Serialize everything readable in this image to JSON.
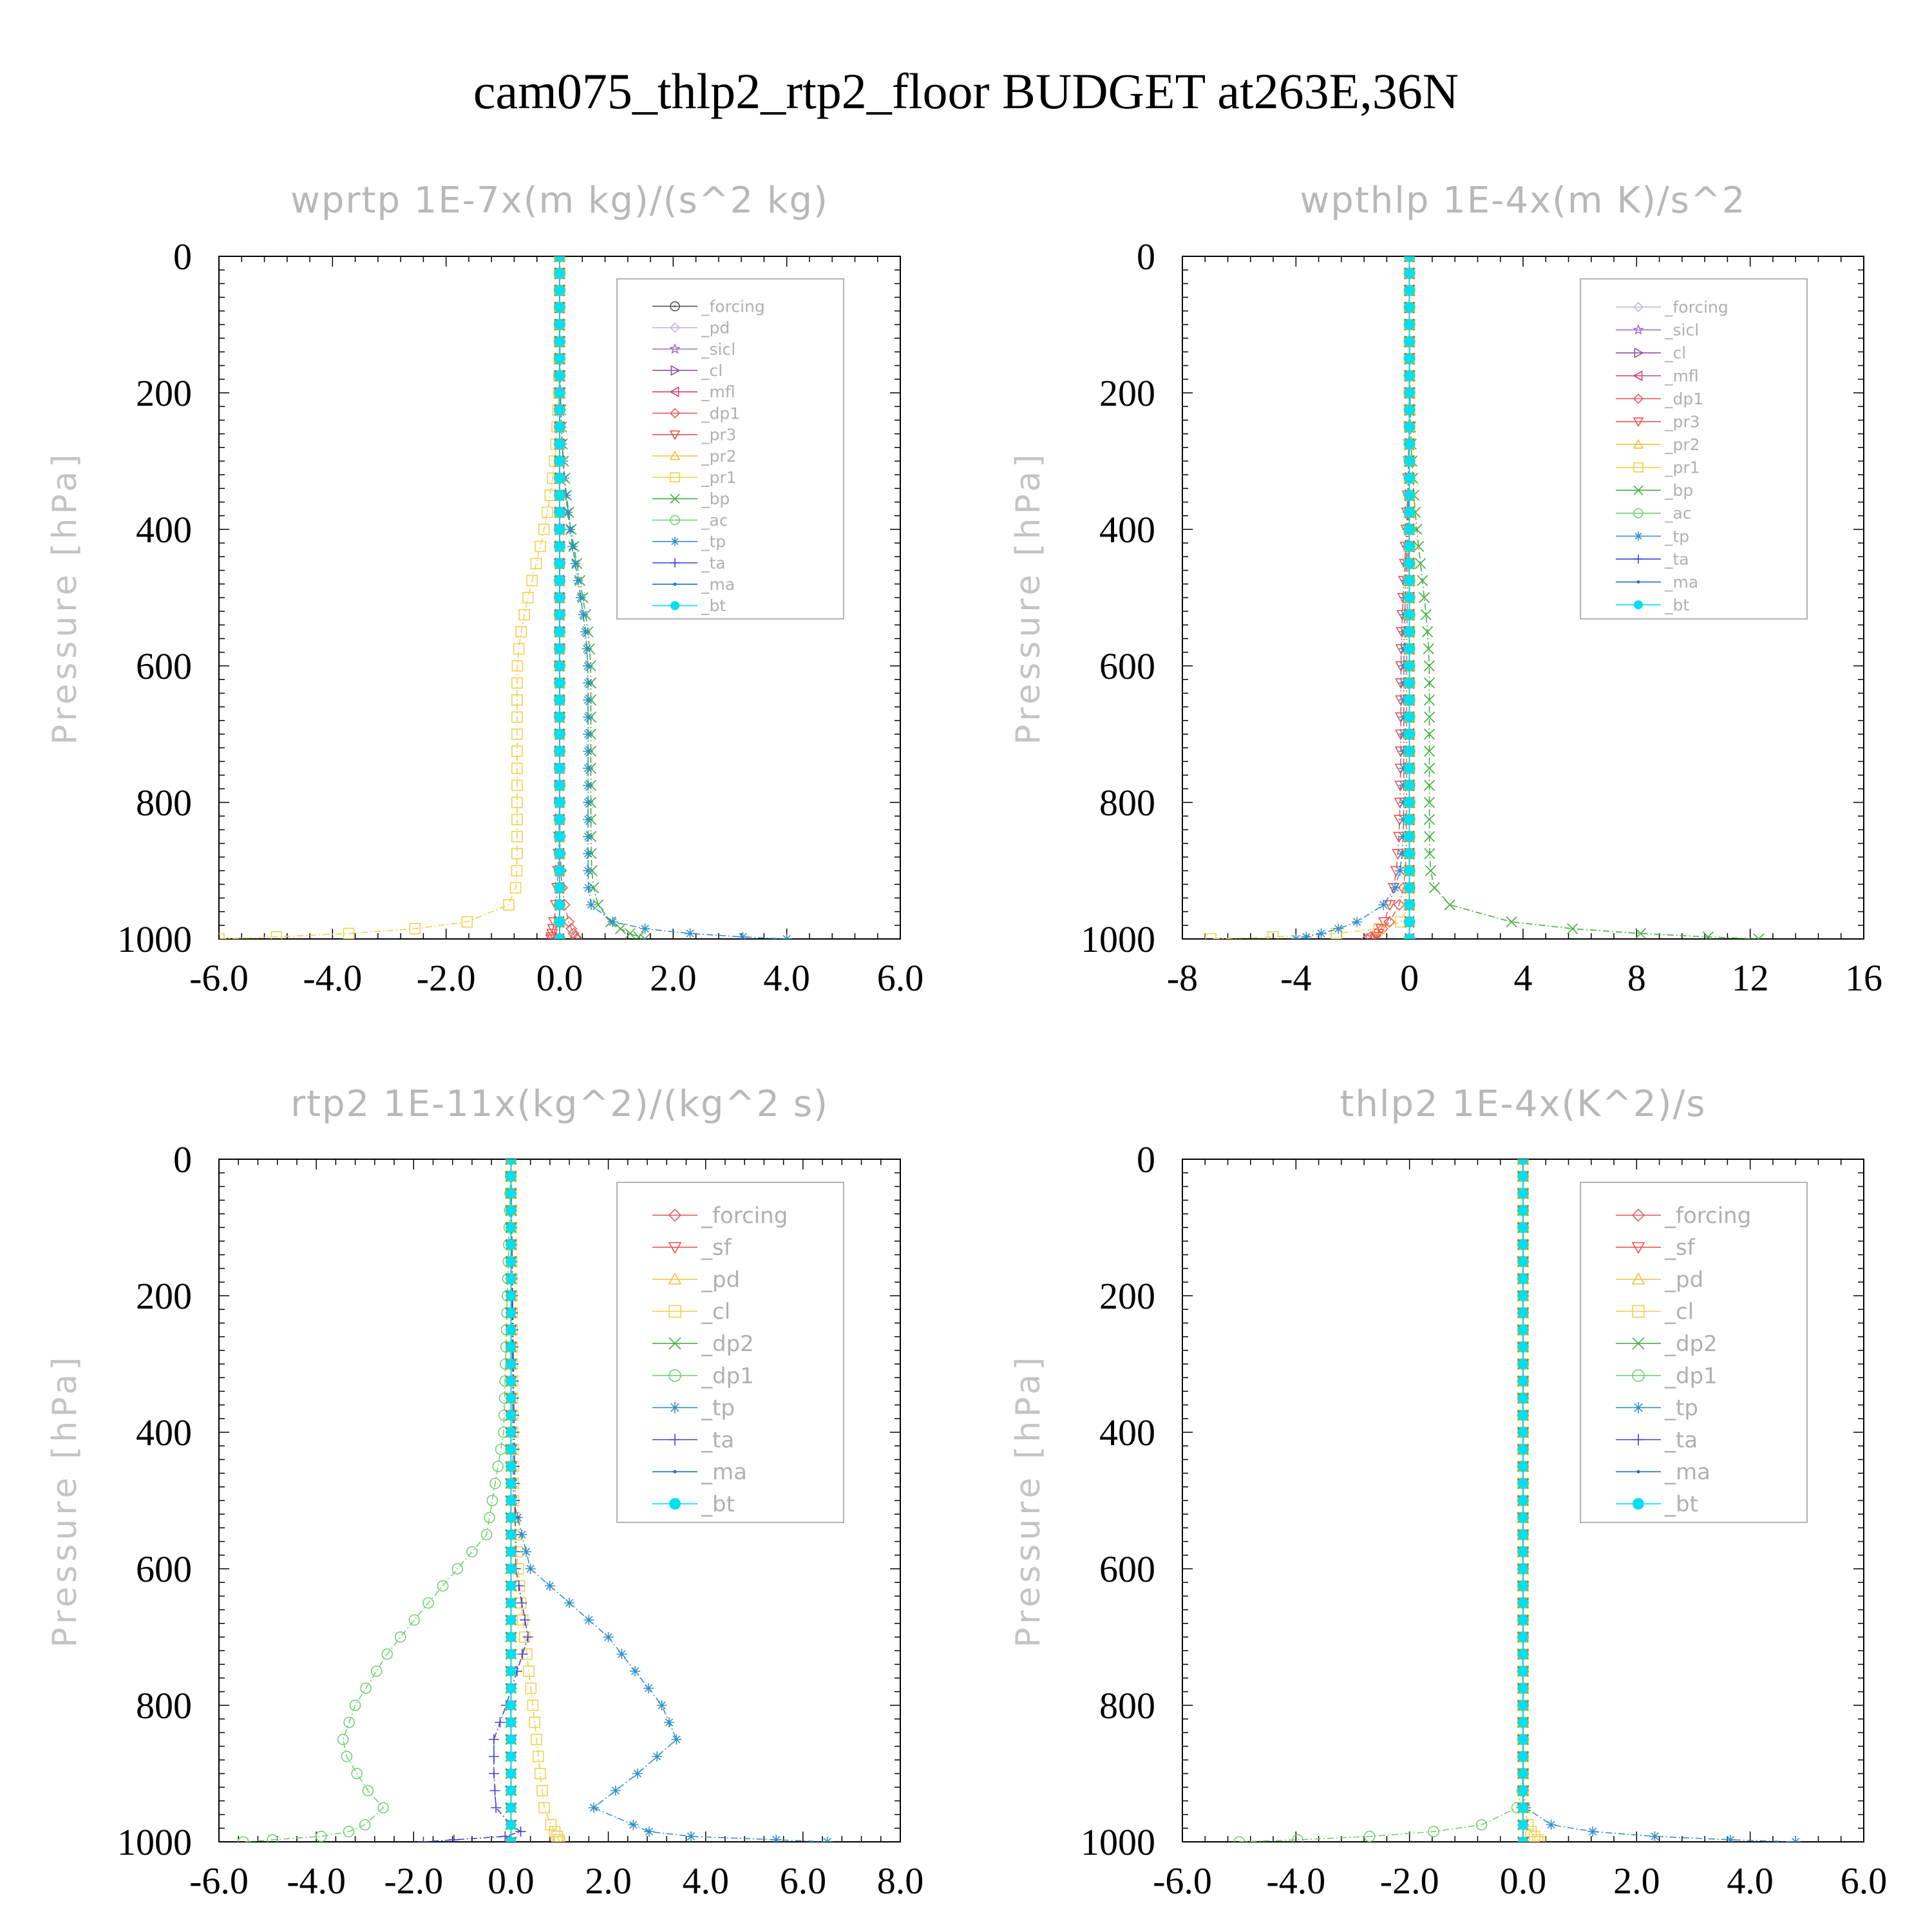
{
  "figure": {
    "title": "cam075_thlp2_rtp2_floor  BUDGET at263E,36N"
  },
  "chart_data": [
    {
      "type": "line",
      "title": "wprtp  1E-7x(m kg)/(s^2 kg)",
      "xlabel": "",
      "ylabel": "Pressure [hPa]",
      "xlim": [
        -6.0,
        6.0
      ],
      "ylim": [
        1000,
        0
      ],
      "xticks": [
        "-6.0",
        "-4.0",
        "-2.0",
        "0.0",
        "2.0",
        "4.0",
        "6.0"
      ],
      "xtick_values": [
        -6,
        -4,
        -2,
        0,
        2,
        4,
        6
      ],
      "yticks": [
        "0",
        "200",
        "400",
        "600",
        "800",
        "1000"
      ],
      "ytick_values": [
        0,
        200,
        400,
        600,
        800,
        1000
      ],
      "legend_position": "top-right",
      "legend_font": 25,
      "series": [
        {
          "name": "_forcing",
          "color": "#555555",
          "marker": "circle-dot",
          "profile": "zero"
        },
        {
          "name": "_pd",
          "color": "#c9b3e8",
          "marker": "diamond",
          "profile": "zero"
        },
        {
          "name": "_sicl",
          "color": "#a070c8",
          "marker": "star",
          "profile": "zero"
        },
        {
          "name": "_cl",
          "color": "#9050a0",
          "marker": "tri-right",
          "profile": "zero"
        },
        {
          "name": "_mfl",
          "color": "#d04070",
          "marker": "tri-left",
          "profile": "zero"
        },
        {
          "name": "_dp1",
          "color": "#e06060",
          "marker": "diamond",
          "profile": "decay",
          "surface": 0.3,
          "scale": 40,
          "shift": 0
        },
        {
          "name": "_pr3",
          "color": "#f05050",
          "marker": "tri-down",
          "profile": "decay",
          "surface": -0.15,
          "scale": 60,
          "shift": 0
        },
        {
          "name": "_pr2",
          "color": "#f0c040",
          "marker": "tri-up",
          "profile": "zero"
        },
        {
          "name": "_pr1",
          "color": "#f2d050",
          "marker": "square",
          "profile": "decay",
          "surface": -6.0,
          "scale": 14,
          "shift": -0.75
        },
        {
          "name": "_bp",
          "color": "#40b040",
          "marker": "x",
          "profile": "decay",
          "surface": 1.5,
          "scale": 25,
          "shift": 0.55
        },
        {
          "name": "_ac",
          "color": "#70d070",
          "marker": "circle",
          "profile": "zero"
        },
        {
          "name": "_tp",
          "color": "#3090c8",
          "marker": "asterisk",
          "profile": "decay",
          "surface": 4.0,
          "scale": 12,
          "shift": 0.5
        },
        {
          "name": "_ta",
          "color": "#4040d0",
          "marker": "plus",
          "profile": "zero"
        },
        {
          "name": "_ma",
          "color": "#2070c0",
          "marker": "dot",
          "profile": "zero"
        },
        {
          "name": "_bt",
          "color": "#00e0f0",
          "marker": "filled-circle",
          "profile": "zero"
        }
      ]
    },
    {
      "type": "line",
      "title": "wpthlp  1E-4x(m K)/s^2",
      "xlabel": "",
      "ylabel": "Pressure [hPa]",
      "xlim": [
        -8,
        16
      ],
      "ylim": [
        1000,
        0
      ],
      "xticks": [
        "-8",
        "-4",
        "0",
        "4",
        "8",
        "12",
        "16"
      ],
      "xtick_values": [
        -8,
        -4,
        0,
        4,
        8,
        12,
        16
      ],
      "yticks": [
        "0",
        "200",
        "400",
        "600",
        "800",
        "1000"
      ],
      "ytick_values": [
        0,
        200,
        400,
        600,
        800,
        1000
      ],
      "legend_position": "top-right",
      "legend_font": 25,
      "series": [
        {
          "name": "_forcing",
          "color": "#c9b3e8",
          "marker": "diamond",
          "profile": "zero"
        },
        {
          "name": "_sicl",
          "color": "#a070c8",
          "marker": "star",
          "profile": "zero"
        },
        {
          "name": "_cl",
          "color": "#9050a0",
          "marker": "tri-right",
          "profile": "zero"
        },
        {
          "name": "_mfl",
          "color": "#d04070",
          "marker": "tri-left",
          "profile": "zero"
        },
        {
          "name": "_dp1",
          "color": "#e06060",
          "marker": "diamond",
          "profile": "decay",
          "surface": -1.5,
          "scale": 30,
          "shift": -0.1
        },
        {
          "name": "_pr3",
          "color": "#f05050",
          "marker": "tri-down",
          "profile": "decay",
          "surface": -1.2,
          "scale": 60,
          "shift": -0.3
        },
        {
          "name": "_pr2",
          "color": "#f0c040",
          "marker": "tri-up",
          "profile": "zero"
        },
        {
          "name": "_pr1",
          "color": "#f2d050",
          "marker": "square",
          "profile": "decay",
          "surface": -7.0,
          "scale": 8,
          "shift": 0
        },
        {
          "name": "_bp",
          "color": "#40b040",
          "marker": "x",
          "profile": "decay",
          "surface": 12.3,
          "scale": 18,
          "shift": 0.7
        },
        {
          "name": "_ac",
          "color": "#70d070",
          "marker": "circle",
          "profile": "zero"
        },
        {
          "name": "_tp",
          "color": "#3090c8",
          "marker": "asterisk",
          "profile": "decay",
          "surface": -4.0,
          "scale": 30,
          "shift": -0.2
        },
        {
          "name": "_ta",
          "color": "#4040d0",
          "marker": "plus",
          "profile": "zero"
        },
        {
          "name": "_ma",
          "color": "#2070c0",
          "marker": "dot",
          "profile": "zero"
        },
        {
          "name": "_bt",
          "color": "#00e0f0",
          "marker": "filled-circle",
          "profile": "zero"
        }
      ]
    },
    {
      "type": "line",
      "title": "rtp2  1E-11x(kg^2)/(kg^2 s)",
      "xlabel": "",
      "ylabel": "Pressure [hPa]",
      "xlim": [
        -6.0,
        8.0
      ],
      "ylim": [
        1000,
        0
      ],
      "xticks": [
        "-6.0",
        "-4.0",
        "-2.0",
        "0.0",
        "2.0",
        "4.0",
        "6.0",
        "8.0"
      ],
      "xtick_values": [
        -6,
        -4,
        -2,
        0,
        2,
        4,
        6,
        8
      ],
      "yticks": [
        "0",
        "200",
        "400",
        "600",
        "800",
        "1000"
      ],
      "ytick_values": [
        0,
        200,
        400,
        600,
        800,
        1000
      ],
      "legend_position": "top-right",
      "legend_font": 34,
      "series": [
        {
          "name": "_forcing",
          "color": "#e06060",
          "marker": "diamond",
          "profile": "zero"
        },
        {
          "name": "_sf",
          "color": "#f05050",
          "marker": "tri-down",
          "profile": "zero"
        },
        {
          "name": "_pd",
          "color": "#f0c040",
          "marker": "tri-up",
          "profile": "zero"
        },
        {
          "name": "_cl",
          "color": "#f2d050",
          "marker": "square",
          "profile": "points",
          "p": [
            0,
            500,
            650,
            800,
            900,
            960,
            985,
            1000
          ],
          "v": [
            0,
            0.05,
            0.2,
            0.45,
            0.6,
            0.7,
            0.9,
            1.0
          ]
        },
        {
          "name": "_dp2",
          "color": "#40b040",
          "marker": "x",
          "profile": "zero"
        },
        {
          "name": "_dp1",
          "color": "#70d070",
          "marker": "circle",
          "profile": "points",
          "p": [
            0,
            400,
            550,
            650,
            720,
            800,
            860,
            920,
            960,
            990,
            1000
          ],
          "v": [
            0,
            -0.15,
            -0.5,
            -1.7,
            -2.5,
            -3.2,
            -3.5,
            -3.0,
            -2.5,
            -3.5,
            -5.5
          ]
        },
        {
          "name": "_tp",
          "color": "#3090c8",
          "marker": "asterisk",
          "profile": "points",
          "p": [
            0,
            500,
            600,
            700,
            800,
            850,
            900,
            950,
            990,
            1000
          ],
          "v": [
            0,
            0.05,
            0.4,
            2.0,
            3.1,
            3.4,
            2.6,
            1.7,
            3.0,
            6.5
          ]
        },
        {
          "name": "_ta",
          "color": "#4040d0",
          "marker": "plus",
          "profile": "points",
          "p": [
            0,
            600,
            700,
            800,
            850,
            900,
            960,
            990,
            1000
          ],
          "v": [
            0,
            0.1,
            0.35,
            -0.1,
            -0.35,
            -0.35,
            -0.3,
            0.3,
            -1.8
          ]
        },
        {
          "name": "_ma",
          "color": "#2070c0",
          "marker": "dot",
          "profile": "zero"
        },
        {
          "name": "_bt",
          "color": "#00e0f0",
          "marker": "filled-circle",
          "profile": "zero"
        }
      ]
    },
    {
      "type": "line",
      "title": "thlp2  1E-4x(K^2)/s",
      "xlabel": "",
      "ylabel": "Pressure [hPa]",
      "xlim": [
        -6.0,
        6.0
      ],
      "ylim": [
        1000,
        0
      ],
      "xticks": [
        "-6.0",
        "-4.0",
        "-2.0",
        "0.0",
        "2.0",
        "4.0",
        "6.0"
      ],
      "xtick_values": [
        -6,
        -4,
        -2,
        0,
        2,
        4,
        6
      ],
      "yticks": [
        "0",
        "200",
        "400",
        "600",
        "800",
        "1000"
      ],
      "ytick_values": [
        0,
        200,
        400,
        600,
        800,
        1000
      ],
      "legend_position": "top-right",
      "legend_font": 34,
      "series": [
        {
          "name": "_forcing",
          "color": "#e06060",
          "marker": "diamond",
          "profile": "zero"
        },
        {
          "name": "_sf",
          "color": "#f05050",
          "marker": "tri-down",
          "profile": "zero"
        },
        {
          "name": "_pd",
          "color": "#f0c040",
          "marker": "tri-up",
          "profile": "zero"
        },
        {
          "name": "_cl",
          "color": "#f2d050",
          "marker": "square",
          "profile": "decay",
          "surface": 0.3,
          "scale": 20,
          "shift": 0
        },
        {
          "name": "_dp2",
          "color": "#40b040",
          "marker": "x",
          "profile": "zero"
        },
        {
          "name": "_dp1",
          "color": "#70d070",
          "marker": "circle",
          "profile": "decay",
          "surface": -5.0,
          "scale": 13,
          "shift": 0
        },
        {
          "name": "_tp",
          "color": "#3090c8",
          "marker": "asterisk",
          "profile": "decay",
          "surface": 4.8,
          "scale": 11,
          "shift": 0
        },
        {
          "name": "_ta",
          "color": "#4040d0",
          "marker": "plus",
          "profile": "zero"
        },
        {
          "name": "_ma",
          "color": "#2070c0",
          "marker": "dot",
          "profile": "zero"
        },
        {
          "name": "_bt",
          "color": "#00e0f0",
          "marker": "filled-circle",
          "profile": "zero"
        }
      ]
    }
  ]
}
